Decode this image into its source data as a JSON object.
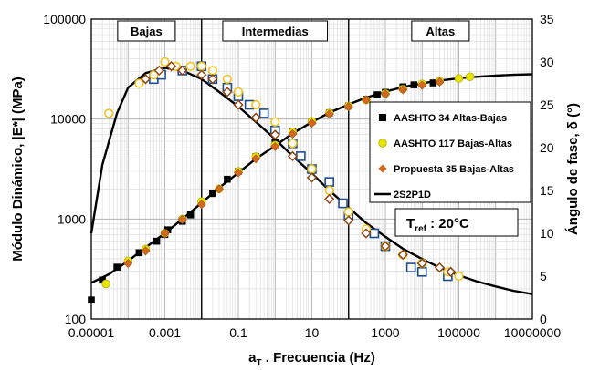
{
  "chart_data": {
    "type": "scatter",
    "xlabel_main": "a",
    "xlabel_sub": "T",
    "xlabel_rest": " . Frecuencia (Hz)",
    "ylabel_left": "Módulo Dinámico, |E*| (MPa)",
    "ylabel_right": "Ángulo de fase, δ (°)",
    "x_scale": "log",
    "y_left_scale": "log",
    "xlim": [
      1e-05,
      10000000
    ],
    "ylim_left": [
      100,
      100000
    ],
    "ylim_right": [
      0,
      35
    ],
    "x_ticks": [
      1e-05,
      0.001,
      0.1,
      10,
      1000,
      100000,
      10000000
    ],
    "x_tick_labels": [
      "0.00001",
      "0.001",
      "0.1",
      "10",
      "1000",
      "100000",
      "10000000"
    ],
    "y_left_ticks": [
      100,
      1000,
      10000,
      100000
    ],
    "y_left_tick_labels": [
      "100",
      "1000",
      "10000",
      "100000"
    ],
    "y_right_ticks": [
      0,
      5,
      10,
      15,
      20,
      25,
      30,
      35
    ],
    "y_right_tick_labels": [
      "0",
      "5",
      "10",
      "15",
      "20",
      "25",
      "30",
      "35"
    ],
    "grid": true,
    "regions": [
      {
        "label": "Bajas",
        "x_from": 1e-05,
        "x_to": 0.01
      },
      {
        "label": "Intermedias",
        "x_from": 0.01,
        "x_to": 100
      },
      {
        "label": "Altas",
        "x_from": 100,
        "x_to": 10000000
      }
    ],
    "region_boundaries": [
      0.01,
      100
    ],
    "tref": {
      "main": "T",
      "sub": "ref",
      "rest": " : 20°C"
    },
    "legend_position": "right-middle",
    "series": [
      {
        "name": "AASHTO 34 Altas-Bajas",
        "color": "#000000",
        "marker": "square",
        "modulus": [
          [
            1e-05,
            155
          ],
          [
            2e-05,
            245
          ],
          [
            5e-05,
            330
          ],
          [
            0.0002,
            460
          ],
          [
            0.0006,
            600
          ],
          [
            0.001,
            700
          ],
          [
            0.0012,
            780
          ],
          [
            0.003,
            950
          ],
          [
            0.005,
            1100
          ],
          [
            0.01,
            1450
          ],
          [
            0.02,
            1800
          ],
          [
            0.05,
            2500
          ],
          [
            0.1,
            3000
          ],
          [
            0.3,
            4200
          ],
          [
            1,
            5800
          ],
          [
            3,
            7500
          ],
          [
            10,
            9500
          ],
          [
            30,
            11500
          ],
          [
            100,
            13500
          ],
          [
            300,
            15800
          ],
          [
            600,
            17500
          ],
          [
            1000,
            18500
          ],
          [
            3000,
            21000
          ],
          [
            6000,
            22000
          ],
          [
            20000,
            23000
          ]
        ],
        "phase": [
          [
            0.0005,
            28
          ],
          [
            0.0008,
            28.5
          ],
          [
            0.003,
            29
          ],
          [
            0.01,
            29.5
          ],
          [
            0.02,
            28
          ],
          [
            0.05,
            27
          ],
          [
            0.1,
            26
          ],
          [
            0.2,
            25
          ],
          [
            0.5,
            24
          ],
          [
            1,
            22
          ],
          [
            3,
            20.5
          ],
          [
            5,
            19
          ],
          [
            10,
            17.5
          ],
          [
            30,
            16
          ],
          [
            70,
            13.5
          ],
          [
            100,
            12
          ],
          [
            500,
            10
          ],
          [
            1000,
            8.5
          ],
          [
            5000,
            6
          ],
          [
            10000,
            5.5
          ],
          [
            50000,
            5
          ]
        ]
      },
      {
        "name": "AASHTO 117 Bajas-Altas",
        "color": "#e8e600",
        "marker": "circle",
        "modulus": [
          [
            2.5e-05,
            225
          ],
          [
            0.0001,
            380
          ],
          [
            0.0003,
            500
          ],
          [
            0.001,
            720
          ],
          [
            0.003,
            1000
          ],
          [
            0.01,
            1500
          ],
          [
            0.03,
            2000
          ],
          [
            0.1,
            3000
          ],
          [
            0.3,
            4200
          ],
          [
            1,
            5500
          ],
          [
            3,
            7400
          ],
          [
            10,
            9500
          ],
          [
            30,
            11500
          ],
          [
            100,
            13500
          ],
          [
            300,
            15500
          ],
          [
            1000,
            18000
          ],
          [
            3000,
            20000
          ],
          [
            10000,
            22500
          ],
          [
            30000,
            24000
          ],
          [
            100000,
            25500
          ],
          [
            200000,
            26500
          ]
        ],
        "phase": [
          [
            3e-05,
            24
          ],
          [
            0.0002,
            27.5
          ],
          [
            0.0005,
            28.5
          ],
          [
            0.001,
            30
          ],
          [
            0.002,
            29.5
          ],
          [
            0.005,
            29.5
          ],
          [
            0.01,
            29.5
          ],
          [
            0.02,
            29
          ],
          [
            0.05,
            28
          ],
          [
            0.1,
            26.5
          ],
          [
            0.3,
            25
          ],
          [
            1,
            23
          ],
          [
            3,
            20.5
          ],
          [
            10,
            17.5
          ],
          [
            30,
            15
          ],
          [
            100,
            12.5
          ],
          [
            300,
            10.5
          ],
          [
            1000,
            8.5
          ],
          [
            3000,
            7.5
          ],
          [
            10000,
            6.5
          ],
          [
            50000,
            5.5
          ],
          [
            100000,
            5
          ]
        ]
      },
      {
        "name": "Propuesta 35 Bajas-Altas",
        "color": "#d2691e",
        "marker": "diamond",
        "modulus": [
          [
            0.0001,
            360
          ],
          [
            0.0003,
            480
          ],
          [
            0.001,
            720
          ],
          [
            0.003,
            990
          ],
          [
            0.01,
            1400
          ],
          [
            0.03,
            2000
          ],
          [
            0.1,
            2900
          ],
          [
            0.3,
            4000
          ],
          [
            1,
            5300
          ],
          [
            3,
            7100
          ],
          [
            10,
            9100
          ],
          [
            30,
            11200
          ],
          [
            100,
            13300
          ],
          [
            300,
            15600
          ],
          [
            1000,
            17800
          ],
          [
            3000,
            19700
          ],
          [
            10000,
            21800
          ],
          [
            30000,
            23500
          ]
        ],
        "phase": [
          [
            0.0003,
            28
          ],
          [
            0.0007,
            29
          ],
          [
            0.0015,
            29.5
          ],
          [
            0.003,
            29
          ],
          [
            0.01,
            28.5
          ],
          [
            0.02,
            28
          ],
          [
            0.05,
            26.5
          ],
          [
            0.1,
            25
          ],
          [
            0.3,
            23.5
          ],
          [
            1,
            21.5
          ],
          [
            3,
            19
          ],
          [
            10,
            16.5
          ],
          [
            30,
            14
          ],
          [
            100,
            11.5
          ],
          [
            300,
            10
          ],
          [
            1000,
            8.5
          ],
          [
            3000,
            7.5
          ],
          [
            10000,
            6.5
          ],
          [
            30000,
            6
          ],
          [
            60000,
            5.5
          ]
        ]
      },
      {
        "name": "2S2P1D",
        "color": "#000000",
        "marker": "line",
        "modulus": [
          [
            1e-05,
            230
          ],
          [
            3e-05,
            280
          ],
          [
            0.0001,
            380
          ],
          [
            0.0003,
            520
          ],
          [
            0.001,
            720
          ],
          [
            0.003,
            1000
          ],
          [
            0.01,
            1450
          ],
          [
            0.03,
            2050
          ],
          [
            0.1,
            2900
          ],
          [
            0.3,
            4000
          ],
          [
            1,
            5400
          ],
          [
            3,
            7200
          ],
          [
            10,
            9300
          ],
          [
            30,
            11600
          ],
          [
            100,
            14000
          ],
          [
            300,
            16400
          ],
          [
            1000,
            18800
          ],
          [
            3000,
            20900
          ],
          [
            10000,
            22800
          ],
          [
            30000,
            24300
          ],
          [
            100000,
            25600
          ],
          [
            300000,
            26500
          ],
          [
            1000000,
            27200
          ],
          [
            3000000,
            27700
          ],
          [
            10000000,
            28100
          ]
        ],
        "phase": [
          [
            1e-05,
            10
          ],
          [
            2e-05,
            18
          ],
          [
            5e-05,
            24
          ],
          [
            0.0001,
            27
          ],
          [
            0.0003,
            28.7
          ],
          [
            0.001,
            29.3
          ],
          [
            0.003,
            29
          ],
          [
            0.01,
            28
          ],
          [
            0.03,
            26.5
          ],
          [
            0.1,
            24.8
          ],
          [
            0.3,
            23
          ],
          [
            1,
            21
          ],
          [
            3,
            19
          ],
          [
            10,
            17
          ],
          [
            30,
            15
          ],
          [
            100,
            13
          ],
          [
            300,
            11.2
          ],
          [
            1000,
            9.6
          ],
          [
            3000,
            8.2
          ],
          [
            10000,
            7
          ],
          [
            30000,
            6
          ],
          [
            100000,
            5.1
          ],
          [
            300000,
            4.4
          ],
          [
            1000000,
            3.8
          ],
          [
            3000000,
            3.3
          ],
          [
            10000000,
            2.9
          ]
        ]
      }
    ]
  }
}
